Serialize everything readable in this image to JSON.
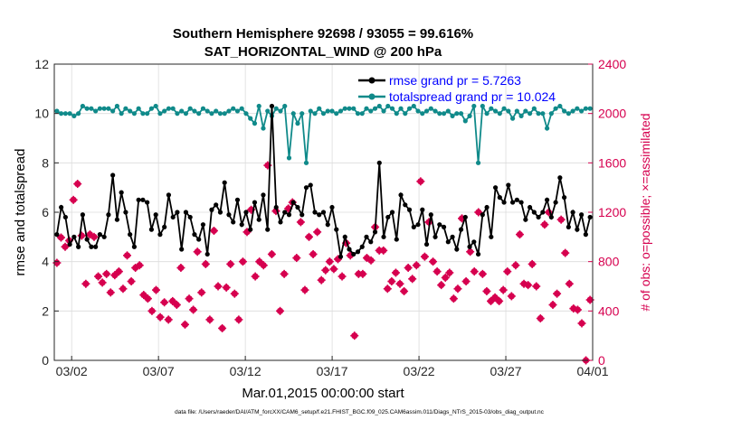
{
  "chart_data": {
    "type": "line",
    "title_line1": "Southern Hemisphere 92698 / 93055 = 99.616%",
    "title_line2": "SAT_HORIZONTAL_WIND @ 200 hPa",
    "xlabel": "Mar.01,2015 00:00:00 start",
    "ylabel_left": "rmse and totalspread",
    "ylabel_right": "# of obs: o=possible; ×=assimilated",
    "footnote": "data file: /Users/raeder/DAI/ATM_forcXX/CAM6_setup/f.e21.FHIST_BGC.f09_025.CAM6assim.011/Diags_NTrS_2015-03/obs_diag_output.nc",
    "xlim": [
      0,
      31
    ],
    "ylim_left": [
      0,
      12
    ],
    "ylim_right": [
      0,
      2400
    ],
    "x_ticks": [
      {
        "x": 1,
        "label": "03/02"
      },
      {
        "x": 6,
        "label": "03/07"
      },
      {
        "x": 11,
        "label": "03/12"
      },
      {
        "x": 16,
        "label": "03/17"
      },
      {
        "x": 21,
        "label": "03/22"
      },
      {
        "x": 26,
        "label": "03/27"
      },
      {
        "x": 31,
        "label": "04/01"
      }
    ],
    "y_ticks_left": [
      "0",
      "2",
      "4",
      "6",
      "8",
      "10",
      "12"
    ],
    "y_ticks_right": [
      "0",
      "400",
      "800",
      "1200",
      "1600",
      "2000",
      "2400"
    ],
    "grid": true,
    "legend_position": "top-right",
    "colors": {
      "rmse": "#000000",
      "spread": "#108a8a",
      "obs": "#d6004f",
      "legend_text": "#0000ff",
      "right_axis": "#d6004f"
    },
    "series": [
      {
        "name": "rmse grand pr = 5.7263",
        "key": "rmse",
        "values": [
          5.1,
          6.2,
          5.8,
          4.7,
          5.0,
          4.6,
          5.9,
          4.9,
          4.6,
          4.6,
          5.1,
          5.0,
          5.9,
          7.5,
          5.7,
          6.8,
          6.0,
          5.1,
          4.6,
          6.5,
          6.5,
          6.4,
          5.3,
          5.9,
          5.1,
          5.4,
          6.7,
          5.8,
          6.0,
          4.5,
          6.0,
          5.8,
          5.1,
          4.9,
          5.5,
          4.3,
          6.1,
          6.3,
          6.0,
          7.2,
          5.9,
          5.6,
          6.5,
          5.5,
          6.0,
          5.3,
          6.4,
          5.7,
          6.7,
          5.3,
          10.3,
          6.2,
          5.6,
          6.0,
          5.9,
          6.4,
          6.2,
          5.9,
          7.0,
          7.1,
          6.0,
          5.9,
          6.0,
          5.5,
          6.2,
          5.3,
          4.2,
          5.0,
          4.5,
          4.3,
          4.4,
          4.6,
          5.0,
          4.8,
          5.2,
          8.0,
          5.0,
          5.8,
          6.0,
          4.9,
          6.7,
          6.3,
          6.1,
          5.4,
          5.5,
          6.1,
          4.7,
          5.9,
          5.0,
          5.5,
          5.4,
          4.8,
          5.0,
          4.5,
          5.3,
          5.8,
          4.6,
          4.8,
          4.3,
          5.9,
          6.2,
          5.0,
          7.0,
          6.6,
          6.4,
          7.1,
          6.4,
          6.5,
          6.4,
          5.7,
          6.2,
          6.0,
          5.8,
          6.0,
          6.5,
          5.8,
          6.4,
          7.4,
          6.6,
          5.4,
          6.0,
          5.3,
          5.9,
          5.1,
          5.8
        ]
      },
      {
        "name": "totalspread grand pr = 10.024",
        "key": "spread",
        "values": [
          10.1,
          10.0,
          10.0,
          10.0,
          9.9,
          10.0,
          10.3,
          10.2,
          10.2,
          10.1,
          10.2,
          10.2,
          10.2,
          10.1,
          10.3,
          10.0,
          10.2,
          10.1,
          10.0,
          10.2,
          10.0,
          10.0,
          10.2,
          10.3,
          10.0,
          10.1,
          10.2,
          10.2,
          10.0,
          10.1,
          10.0,
          10.2,
          10.1,
          10.0,
          10.2,
          10.1,
          10.0,
          10.1,
          10.0,
          10.0,
          10.1,
          10.2,
          10.1,
          10.2,
          10.0,
          9.8,
          9.6,
          10.3,
          9.4,
          10.1,
          9.9,
          10.2,
          10.1,
          10.3,
          8.2,
          10.0,
          9.6,
          10.0,
          8.0,
          10.1,
          10.0,
          10.2,
          10.0,
          10.1,
          10.1,
          10.0,
          10.1,
          10.2,
          10.2,
          10.2,
          10.0,
          10.0,
          10.2,
          10.1,
          10.2,
          10.3,
          10.1,
          10.3,
          10.2,
          10.0,
          10.2,
          10.0,
          10.2,
          10.3,
          10.1,
          10.0,
          10.1,
          10.2,
          10.1,
          10.0,
          10.0,
          10.1,
          9.9,
          10.0,
          10.0,
          9.7,
          9.9,
          10.3,
          8.0,
          10.3,
          10.0,
          10.2,
          10.1,
          10.0,
          10.2,
          10.1,
          9.8,
          10.1,
          9.9,
          10.1,
          10.0,
          10.2,
          10.0,
          10.0,
          9.4,
          10.0,
          10.2,
          10.3,
          10.1,
          10.0,
          10.1,
          10.2,
          10.1,
          10.2,
          10.2
        ]
      },
      {
        "name": "possible",
        "key": "obs_possible",
        "values": [
          790,
          995,
          920,
          970,
          1300,
          1430,
          1010,
          620,
          1020,
          1000,
          680,
          630,
          700,
          550,
          690,
          720,
          580,
          850,
          640,
          750,
          770,
          530,
          500,
          400,
          570,
          350,
          470,
          330,
          480,
          450,
          750,
          290,
          500,
          410,
          880,
          550,
          780,
          330,
          1050,
          600,
          260,
          590,
          780,
          540,
          330,
          800,
          1040,
          1220,
          680,
          800,
          770,
          1580,
          860,
          1210,
          400,
          700,
          1230,
          1280,
          830,
          1120,
          570,
          1000,
          860,
          1040,
          650,
          730,
          800,
          740,
          820,
          680,
          950,
          850,
          200,
          700,
          700,
          830,
          810,
          1080,
          890,
          890,
          580,
          640,
          710,
          620,
          560,
          750,
          660,
          770,
          1450,
          840,
          1120,
          800,
          720,
          610,
          670,
          710,
          500,
          580,
          1150,
          640,
          880,
          720,
          1200,
          700,
          560,
          480,
          510,
          480,
          570,
          720,
          520,
          770,
          1020,
          620,
          610,
          780,
          600,
          340,
          1100,
          1200,
          450,
          540,
          1140,
          870,
          620,
          420,
          410,
          300,
          0,
          490
        ]
      }
    ]
  }
}
